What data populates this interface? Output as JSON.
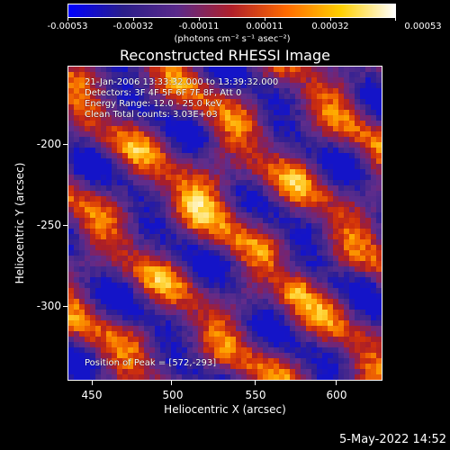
{
  "colorbar": {
    "ticks": [
      "-0.00053",
      "-0.00032",
      "-0.00011",
      "0.00011",
      "0.00032",
      "0.00053"
    ],
    "units": "(photons cm⁻² s⁻¹ asec⁻²)",
    "colors": [
      "#0000ff",
      "#2a1e8a",
      "#5a2a8a",
      "#b0202a",
      "#ff6a00",
      "#ffd000",
      "#ffffff"
    ]
  },
  "image": {
    "title": "Reconstructed RHESSI Image",
    "info_lines": [
      "21-Jan-2006 13:33:32.000 to 13:39:32.000",
      "Detectors: 3F 4F 5F 6F 7F 8F, Att 0",
      "Energy Range: 12.0 - 25.0 keV",
      "Clean    Total counts: 3.03E+03"
    ],
    "peak_text": "Position of Peak = [572,-293]"
  },
  "axes": {
    "xlabel": "Heliocentric X (arcsec)",
    "ylabel": "Heliocentric Y (arcsec)",
    "xticks": [
      "450",
      "500",
      "550",
      "600"
    ],
    "yticks": [
      "-200",
      "-250",
      "-300"
    ]
  },
  "timestamp": "5-May-2022 14:52"
}
